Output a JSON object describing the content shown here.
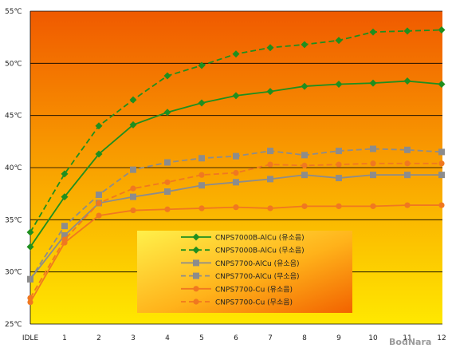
{
  "chart_data": {
    "type": "line",
    "categories": [
      "IDLE",
      "1",
      "2",
      "3",
      "4",
      "5",
      "6",
      "7",
      "8",
      "9",
      "10",
      "11",
      "12"
    ],
    "y_ticks": [
      "25℃",
      "30℃",
      "35℃",
      "40℃",
      "45℃",
      "50℃",
      "55℃"
    ],
    "ylim": [
      25,
      55
    ],
    "grid": true,
    "legend_position": "center-bottom",
    "series": [
      {
        "name": "CNPS7000B-AlCu (유소음)",
        "color": "#1f8f1f",
        "dash": false,
        "marker": "diamond",
        "values": [
          32.4,
          37.2,
          41.3,
          44.1,
          45.3,
          46.2,
          46.9,
          47.3,
          47.8,
          48.0,
          48.1,
          48.3,
          48.0
        ]
      },
      {
        "name": "CNPS7000B-AlCu (무소음)",
        "color": "#1f8f1f",
        "dash": true,
        "marker": "diamond",
        "values": [
          33.8,
          39.4,
          44.0,
          46.5,
          48.8,
          49.8,
          50.9,
          51.5,
          51.8,
          52.2,
          53.0,
          53.1,
          53.2
        ]
      },
      {
        "name": "CNPS7700-AlCu (유소음)",
        "color": "#8c8c8c",
        "dash": false,
        "marker": "square",
        "values": [
          29.3,
          33.5,
          36.6,
          37.2,
          37.7,
          38.3,
          38.6,
          38.9,
          39.3,
          39.0,
          39.3,
          39.3,
          39.3
        ]
      },
      {
        "name": "CNPS7700-AlCu (무소음)",
        "color": "#8c8c8c",
        "dash": true,
        "marker": "square",
        "values": [
          29.3,
          34.4,
          37.4,
          39.8,
          40.5,
          40.9,
          41.1,
          41.6,
          41.2,
          41.6,
          41.8,
          41.7,
          41.5
        ]
      },
      {
        "name": "CNPS7700-Cu (유소음)",
        "color": "#f07820",
        "dash": false,
        "marker": "circle",
        "values": [
          27.1,
          32.8,
          35.4,
          35.9,
          36.0,
          36.1,
          36.2,
          36.1,
          36.3,
          36.3,
          36.3,
          36.4,
          36.4
        ]
      },
      {
        "name": "CNPS7700-Cu (무소음)",
        "color": "#f07820",
        "dash": true,
        "marker": "circle",
        "values": [
          27.5,
          33.1,
          36.6,
          38.0,
          38.6,
          39.3,
          39.5,
          40.3,
          40.2,
          40.3,
          40.4,
          40.4,
          40.4
        ]
      }
    ],
    "watermark": "BodNara"
  }
}
